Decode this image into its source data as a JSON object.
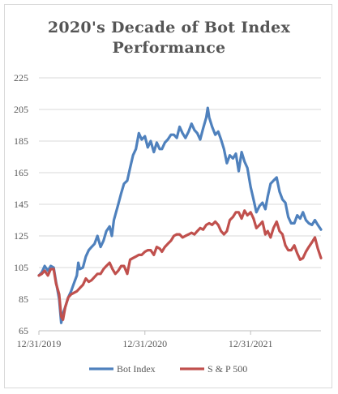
{
  "chart_data": {
    "type": "line",
    "title_line1": "2020's Decade of Bot Index",
    "title_line2": "Performance",
    "xlabel": "",
    "ylabel": "",
    "ylim": [
      65,
      225
    ],
    "ytick_labels": [
      "65",
      "85",
      "105",
      "125",
      "145",
      "165",
      "185",
      "205",
      "225"
    ],
    "xlim": [
      "2019-12-31",
      "2022-08-31"
    ],
    "xtick_labels": [
      {
        "date": "2019-12-31",
        "label": "12/31/2019"
      },
      {
        "date": "2020-12-31",
        "label": "12/31/2020"
      },
      {
        "date": "2021-12-31",
        "label": "12/31/2021"
      }
    ],
    "grid": "horizontal",
    "legend_position": "bottom",
    "series": [
      {
        "name": "Bot Index",
        "color": "#4f81bd",
        "points": [
          [
            "2019-12-31",
            100
          ],
          [
            "2020-01-10",
            102
          ],
          [
            "2020-01-20",
            106
          ],
          [
            "2020-01-31",
            103
          ],
          [
            "2020-02-10",
            106
          ],
          [
            "2020-02-20",
            105
          ],
          [
            "2020-02-28",
            96
          ],
          [
            "2020-03-10",
            85
          ],
          [
            "2020-03-17",
            70
          ],
          [
            "2020-03-23",
            76
          ],
          [
            "2020-03-31",
            80
          ],
          [
            "2020-04-10",
            86
          ],
          [
            "2020-04-20",
            90
          ],
          [
            "2020-04-30",
            95
          ],
          [
            "2020-05-10",
            100
          ],
          [
            "2020-05-15",
            108
          ],
          [
            "2020-05-20",
            104
          ],
          [
            "2020-05-31",
            105
          ],
          [
            "2020-06-10",
            112
          ],
          [
            "2020-06-20",
            116
          ],
          [
            "2020-06-30",
            118
          ],
          [
            "2020-07-10",
            120
          ],
          [
            "2020-07-20",
            125
          ],
          [
            "2020-07-31",
            118
          ],
          [
            "2020-08-10",
            122
          ],
          [
            "2020-08-20",
            128
          ],
          [
            "2020-08-31",
            131
          ],
          [
            "2020-09-08",
            125
          ],
          [
            "2020-09-15",
            135
          ],
          [
            "2020-09-30",
            145
          ],
          [
            "2020-10-10",
            152
          ],
          [
            "2020-10-20",
            158
          ],
          [
            "2020-10-31",
            160
          ],
          [
            "2020-11-10",
            168
          ],
          [
            "2020-11-20",
            176
          ],
          [
            "2020-11-30",
            180
          ],
          [
            "2020-12-10",
            190
          ],
          [
            "2020-12-20",
            186
          ],
          [
            "2020-12-31",
            188
          ],
          [
            "2021-01-10",
            181
          ],
          [
            "2021-01-20",
            185
          ],
          [
            "2021-01-31",
            178
          ],
          [
            "2021-02-10",
            184
          ],
          [
            "2021-02-20",
            180
          ],
          [
            "2021-02-28",
            180
          ],
          [
            "2021-03-10",
            184
          ],
          [
            "2021-03-20",
            186
          ],
          [
            "2021-03-31",
            189
          ],
          [
            "2021-04-10",
            189
          ],
          [
            "2021-04-20",
            187
          ],
          [
            "2021-04-30",
            194
          ],
          [
            "2021-05-10",
            190
          ],
          [
            "2021-05-20",
            187
          ],
          [
            "2021-05-31",
            191
          ],
          [
            "2021-06-10",
            196
          ],
          [
            "2021-06-20",
            192
          ],
          [
            "2021-06-30",
            190
          ],
          [
            "2021-07-10",
            186
          ],
          [
            "2021-07-20",
            193
          ],
          [
            "2021-07-31",
            200
          ],
          [
            "2021-08-05",
            206
          ],
          [
            "2021-08-10",
            200
          ],
          [
            "2021-08-20",
            194
          ],
          [
            "2021-08-31",
            189
          ],
          [
            "2021-09-10",
            191
          ],
          [
            "2021-09-20",
            186
          ],
          [
            "2021-09-30",
            180
          ],
          [
            "2021-10-10",
            171
          ],
          [
            "2021-10-20",
            176
          ],
          [
            "2021-10-31",
            174
          ],
          [
            "2021-11-10",
            177
          ],
          [
            "2021-11-20",
            166
          ],
          [
            "2021-11-30",
            178
          ],
          [
            "2021-12-10",
            172
          ],
          [
            "2021-12-20",
            168
          ],
          [
            "2021-12-31",
            156
          ],
          [
            "2022-01-10",
            148
          ],
          [
            "2022-01-20",
            140
          ],
          [
            "2022-01-31",
            144
          ],
          [
            "2022-02-10",
            146
          ],
          [
            "2022-02-20",
            142
          ],
          [
            "2022-02-28",
            150
          ],
          [
            "2022-03-10",
            158
          ],
          [
            "2022-03-20",
            160
          ],
          [
            "2022-03-31",
            162
          ],
          [
            "2022-04-10",
            153
          ],
          [
            "2022-04-20",
            148
          ],
          [
            "2022-04-30",
            146
          ],
          [
            "2022-05-10",
            137
          ],
          [
            "2022-05-20",
            133
          ],
          [
            "2022-05-31",
            133
          ],
          [
            "2022-06-10",
            138
          ],
          [
            "2022-06-20",
            136
          ],
          [
            "2022-06-30",
            140
          ],
          [
            "2022-07-10",
            135
          ],
          [
            "2022-07-20",
            133
          ],
          [
            "2022-07-31",
            132
          ],
          [
            "2022-08-10",
            135
          ],
          [
            "2022-08-20",
            132
          ],
          [
            "2022-08-31",
            129
          ]
        ]
      },
      {
        "name": "S & P 500",
        "color": "#c0504d",
        "points": [
          [
            "2019-12-31",
            100
          ],
          [
            "2020-01-10",
            101
          ],
          [
            "2020-01-20",
            103
          ],
          [
            "2020-01-31",
            100
          ],
          [
            "2020-02-10",
            104
          ],
          [
            "2020-02-20",
            104
          ],
          [
            "2020-02-28",
            95
          ],
          [
            "2020-03-10",
            88
          ],
          [
            "2020-03-17",
            74
          ],
          [
            "2020-03-23",
            72
          ],
          [
            "2020-03-31",
            80
          ],
          [
            "2020-04-10",
            86
          ],
          [
            "2020-04-20",
            88
          ],
          [
            "2020-04-30",
            89
          ],
          [
            "2020-05-10",
            90
          ],
          [
            "2020-05-20",
            92
          ],
          [
            "2020-05-31",
            94
          ],
          [
            "2020-06-10",
            98
          ],
          [
            "2020-06-20",
            96
          ],
          [
            "2020-06-30",
            97
          ],
          [
            "2020-07-10",
            99
          ],
          [
            "2020-07-20",
            101
          ],
          [
            "2020-07-31",
            101
          ],
          [
            "2020-08-10",
            104
          ],
          [
            "2020-08-20",
            106
          ],
          [
            "2020-08-31",
            108
          ],
          [
            "2020-09-10",
            104
          ],
          [
            "2020-09-20",
            101
          ],
          [
            "2020-09-30",
            103
          ],
          [
            "2020-10-10",
            106
          ],
          [
            "2020-10-20",
            106
          ],
          [
            "2020-10-31",
            101
          ],
          [
            "2020-11-10",
            110
          ],
          [
            "2020-11-20",
            111
          ],
          [
            "2020-11-30",
            112
          ],
          [
            "2020-12-10",
            113
          ],
          [
            "2020-12-20",
            113
          ],
          [
            "2020-12-31",
            115
          ],
          [
            "2021-01-10",
            116
          ],
          [
            "2021-01-20",
            116
          ],
          [
            "2021-01-31",
            113
          ],
          [
            "2021-02-10",
            118
          ],
          [
            "2021-02-20",
            117
          ],
          [
            "2021-02-28",
            115
          ],
          [
            "2021-03-10",
            118
          ],
          [
            "2021-03-20",
            120
          ],
          [
            "2021-03-31",
            122
          ],
          [
            "2021-04-10",
            125
          ],
          [
            "2021-04-20",
            126
          ],
          [
            "2021-04-30",
            126
          ],
          [
            "2021-05-10",
            124
          ],
          [
            "2021-05-20",
            125
          ],
          [
            "2021-05-31",
            126
          ],
          [
            "2021-06-10",
            127
          ],
          [
            "2021-06-20",
            126
          ],
          [
            "2021-06-30",
            128
          ],
          [
            "2021-07-10",
            130
          ],
          [
            "2021-07-20",
            129
          ],
          [
            "2021-07-31",
            132
          ],
          [
            "2021-08-10",
            133
          ],
          [
            "2021-08-20",
            132
          ],
          [
            "2021-08-31",
            134
          ],
          [
            "2021-09-10",
            132
          ],
          [
            "2021-09-20",
            128
          ],
          [
            "2021-09-30",
            126
          ],
          [
            "2021-10-10",
            128
          ],
          [
            "2021-10-20",
            135
          ],
          [
            "2021-10-31",
            137
          ],
          [
            "2021-11-10",
            140
          ],
          [
            "2021-11-20",
            140
          ],
          [
            "2021-11-30",
            136
          ],
          [
            "2021-12-10",
            141
          ],
          [
            "2021-12-20",
            138
          ],
          [
            "2021-12-31",
            140
          ],
          [
            "2022-01-10",
            136
          ],
          [
            "2022-01-20",
            130
          ],
          [
            "2022-01-31",
            132
          ],
          [
            "2022-02-10",
            134
          ],
          [
            "2022-02-20",
            126
          ],
          [
            "2022-02-28",
            128
          ],
          [
            "2022-03-10",
            124
          ],
          [
            "2022-03-20",
            130
          ],
          [
            "2022-03-31",
            134
          ],
          [
            "2022-04-10",
            128
          ],
          [
            "2022-04-20",
            126
          ],
          [
            "2022-04-30",
            119
          ],
          [
            "2022-05-10",
            116
          ],
          [
            "2022-05-20",
            116
          ],
          [
            "2022-05-31",
            119
          ],
          [
            "2022-06-10",
            114
          ],
          [
            "2022-06-20",
            110
          ],
          [
            "2022-06-30",
            111
          ],
          [
            "2022-07-10",
            115
          ],
          [
            "2022-07-20",
            118
          ],
          [
            "2022-07-31",
            121
          ],
          [
            "2022-08-10",
            124
          ],
          [
            "2022-08-20",
            117
          ],
          [
            "2022-08-31",
            111
          ]
        ]
      }
    ]
  }
}
